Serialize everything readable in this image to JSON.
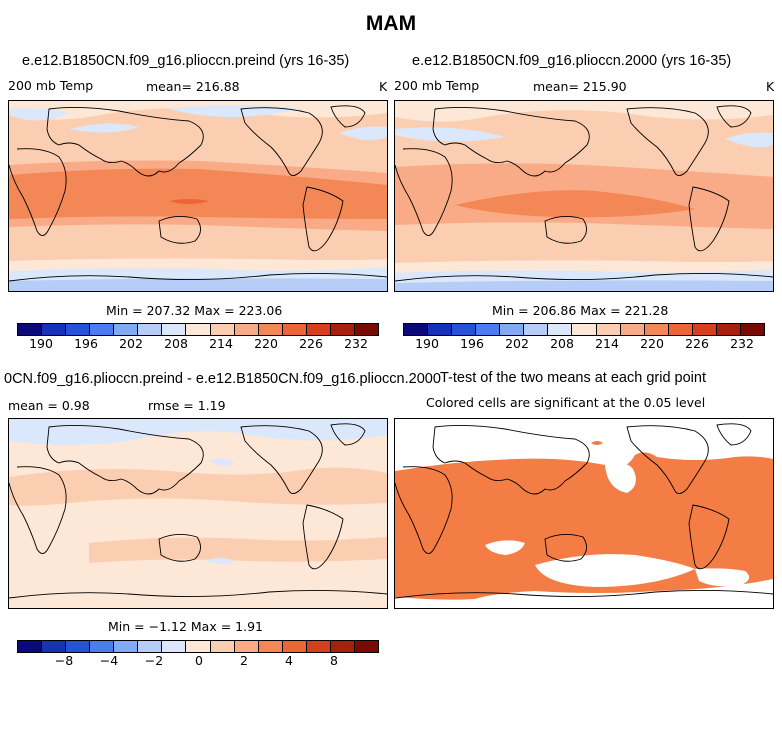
{
  "title": "MAM",
  "colors": {
    "scale": [
      "#0a0a7a",
      "#1633b5",
      "#2453d8",
      "#4a7ded",
      "#82a9f3",
      "#b5cdf7",
      "#dbe8fb",
      "#fde7d6",
      "#fbcdb1",
      "#f8ab86",
      "#f38755",
      "#ec6535",
      "#d63f1c",
      "#a6200c",
      "#7a0a04"
    ],
    "sig": "#f47d46"
  },
  "chart_data": [
    {
      "type": "heatmap",
      "panel": "top-left",
      "title": "e.e12.B1850CN.f09_g16.plioccn.preind (yrs 16-35)",
      "left_label": "200 mb Temp",
      "mean_label": "mean= 216.88",
      "unit": "K",
      "stats": "Min = 207.32 Max = 223.06",
      "colorbar_ticks": [
        "190",
        "196",
        "202",
        "208",
        "214",
        "220",
        "226",
        "232"
      ]
    },
    {
      "type": "heatmap",
      "panel": "top-right",
      "title": "e.e12.B1850CN.f09_g16.plioccn.2000 (yrs 16-35)",
      "left_label": "200 mb Temp",
      "mean_label": "mean= 215.90",
      "unit": "K",
      "stats": "Min = 206.86 Max = 221.28",
      "colorbar_ticks": [
        "190",
        "196",
        "202",
        "208",
        "214",
        "220",
        "226",
        "232"
      ]
    },
    {
      "type": "heatmap",
      "panel": "bottom-left",
      "title": "0CN.f09_g16.plioccn.preind - e.e12.B1850CN.f09_g16.plioccn.2000",
      "mean_label": "mean =    0.98",
      "rmse_label": "rmse =    1.19",
      "stats": "Min =  −1.12 Max =    1.91",
      "colorbar_ticks": [
        "−8",
        "−4",
        "−2",
        "0",
        "2",
        "4",
        "8"
      ]
    },
    {
      "type": "heatmap",
      "panel": "bottom-right",
      "title": "T-test of the two means at each grid point",
      "subtitle": "Colored cells are significant at the 0.05 level"
    }
  ]
}
